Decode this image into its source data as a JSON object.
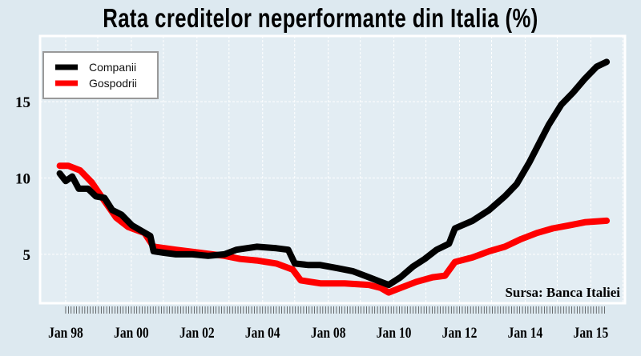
{
  "chart_data": {
    "type": "line",
    "title": "Rata creditelor neperformante din Italia (%)",
    "xlabel": "",
    "ylabel": "",
    "source": "Sursa: Banca Italiei",
    "x_note": "x values expressed in tick-index units (0 = first labeled tick, 8 = last labeled tick)",
    "x_tick_labels": [
      "Jan 98",
      "Jan 00",
      "Jan 02",
      "Jan 04",
      "Jan 08",
      "Jan 10",
      "Jan 12",
      "Jan 14",
      "Jan 15"
    ],
    "y_ticks": [
      5,
      10,
      15
    ],
    "xlim": [
      -0.39,
      8.52
    ],
    "ylim": [
      1.8,
      19.3
    ],
    "grid": true,
    "legend_position": "top-left",
    "colors": {
      "Companii": "#000000",
      "Gospodrii": "#ff0000",
      "plot_bg": "#e3edf3",
      "page_bg": "#dde9f0"
    },
    "series": [
      {
        "name": "Companii",
        "points": [
          [
            -0.09,
            10.3
          ],
          [
            0,
            9.8
          ],
          [
            0.1,
            10.1
          ],
          [
            0.2,
            9.3
          ],
          [
            0.34,
            9.3
          ],
          [
            0.46,
            8.8
          ],
          [
            0.59,
            8.7
          ],
          [
            0.71,
            7.9
          ],
          [
            0.85,
            7.6
          ],
          [
            1.01,
            6.9
          ],
          [
            1.17,
            6.5
          ],
          [
            1.29,
            6.2
          ],
          [
            1.34,
            5.2
          ],
          [
            1.5,
            5.1
          ],
          [
            1.68,
            5.0
          ],
          [
            1.93,
            5.0
          ],
          [
            2.17,
            4.9
          ],
          [
            2.42,
            5.0
          ],
          [
            2.6,
            5.3
          ],
          [
            2.91,
            5.5
          ],
          [
            3.21,
            5.4
          ],
          [
            3.39,
            5.3
          ],
          [
            3.49,
            4.4
          ],
          [
            3.7,
            4.3
          ],
          [
            3.88,
            4.3
          ],
          [
            4.13,
            4.1
          ],
          [
            4.37,
            3.9
          ],
          [
            4.62,
            3.5
          ],
          [
            4.8,
            3.2
          ],
          [
            4.92,
            3.0
          ],
          [
            5.1,
            3.5
          ],
          [
            5.29,
            4.2
          ],
          [
            5.47,
            4.7
          ],
          [
            5.65,
            5.3
          ],
          [
            5.84,
            5.7
          ],
          [
            5.93,
            6.7
          ],
          [
            6.2,
            7.2
          ],
          [
            6.45,
            7.9
          ],
          [
            6.69,
            8.8
          ],
          [
            6.87,
            9.6
          ],
          [
            7.06,
            11.0
          ],
          [
            7.24,
            12.5
          ],
          [
            7.36,
            13.5
          ],
          [
            7.55,
            14.8
          ],
          [
            7.73,
            15.6
          ],
          [
            7.91,
            16.5
          ],
          [
            8.09,
            17.3
          ],
          [
            8.24,
            17.6
          ]
        ]
      },
      {
        "name": "Gospodrii",
        "points": [
          [
            -0.09,
            10.8
          ],
          [
            0.04,
            10.8
          ],
          [
            0.22,
            10.5
          ],
          [
            0.4,
            9.7
          ],
          [
            0.59,
            8.5
          ],
          [
            0.77,
            7.4
          ],
          [
            0.95,
            6.8
          ],
          [
            1.2,
            6.4
          ],
          [
            1.34,
            5.5
          ],
          [
            1.68,
            5.3
          ],
          [
            2.05,
            5.1
          ],
          [
            2.42,
            4.9
          ],
          [
            2.66,
            4.7
          ],
          [
            2.91,
            4.6
          ],
          [
            3.21,
            4.4
          ],
          [
            3.46,
            4.0
          ],
          [
            3.58,
            3.3
          ],
          [
            3.88,
            3.1
          ],
          [
            4.25,
            3.1
          ],
          [
            4.62,
            3.0
          ],
          [
            4.8,
            2.8
          ],
          [
            4.92,
            2.5
          ],
          [
            5.1,
            2.8
          ],
          [
            5.34,
            3.2
          ],
          [
            5.59,
            3.5
          ],
          [
            5.78,
            3.6
          ],
          [
            5.93,
            4.5
          ],
          [
            6.2,
            4.8
          ],
          [
            6.45,
            5.2
          ],
          [
            6.69,
            5.5
          ],
          [
            6.94,
            6.0
          ],
          [
            7.18,
            6.4
          ],
          [
            7.42,
            6.7
          ],
          [
            7.67,
            6.9
          ],
          [
            7.91,
            7.1
          ],
          [
            8.24,
            7.2
          ]
        ]
      }
    ]
  }
}
